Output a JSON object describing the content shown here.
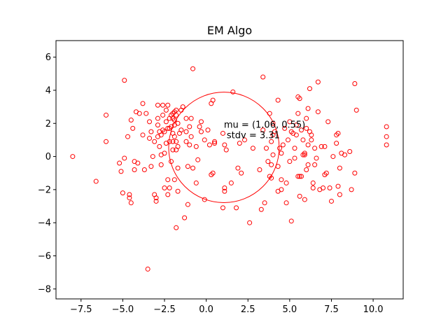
{
  "chart_data": {
    "type": "scatter",
    "title": "EM Algo",
    "xlabel": "",
    "ylabel": "",
    "xlim": [
      -9.0,
      11.8
    ],
    "ylim": [
      -8.6,
      7.0
    ],
    "xticks": [
      -7.5,
      -5.0,
      -2.5,
      0.0,
      2.5,
      5.0,
      7.5,
      10.0
    ],
    "xtick_labels": [
      "−7.5",
      "−5.0",
      "−2.5",
      "0.0",
      "2.5",
      "5.0",
      "7.5",
      "10.0"
    ],
    "yticks": [
      -8,
      -6,
      -4,
      -2,
      0,
      2,
      4,
      6
    ],
    "ytick_labels": [
      "−8",
      "−6",
      "−4",
      "−2",
      "0",
      "2",
      "4",
      "6"
    ],
    "grid": false,
    "marker_color": "#ff0000",
    "circle": {
      "center": [
        1.06,
        0.55
      ],
      "radius": 3.31,
      "color": "#ff0000"
    },
    "annotation": {
      "line1": "mu = (1.06, 0.55)",
      "line2": "stdv = 3.31",
      "anchor": [
        1.06,
        0.55
      ]
    },
    "points": [
      [
        -8.0,
        0.0
      ],
      [
        -6.6,
        -1.5
      ],
      [
        -6.0,
        2.5
      ],
      [
        -6.0,
        0.9
      ],
      [
        -5.2,
        -0.4
      ],
      [
        -5.1,
        -0.9
      ],
      [
        -5.0,
        -2.2
      ],
      [
        -4.9,
        4.6
      ],
      [
        -4.9,
        -0.1
      ],
      [
        -4.7,
        1.2
      ],
      [
        -4.6,
        -2.3
      ],
      [
        -4.6,
        -2.5
      ],
      [
        -4.5,
        -2.8
      ],
      [
        -4.5,
        2.2
      ],
      [
        -4.4,
        1.7
      ],
      [
        -4.3,
        -0.8
      ],
      [
        -4.3,
        -0.3
      ],
      [
        -4.2,
        2.7
      ],
      [
        -4.1,
        -0.4
      ],
      [
        -4.0,
        2.6
      ],
      [
        -3.8,
        3.2
      ],
      [
        -3.8,
        1.3
      ],
      [
        -3.7,
        -0.8
      ],
      [
        -3.6,
        2.6
      ],
      [
        -3.5,
        -6.8
      ],
      [
        -3.4,
        2.1
      ],
      [
        -3.4,
        1.1
      ],
      [
        -3.3,
        -0.6
      ],
      [
        -3.3,
        1.5
      ],
      [
        -3.2,
        0.0
      ],
      [
        -3.1,
        -2.3
      ],
      [
        -3.1,
        0.9
      ],
      [
        -3.0,
        -2.5
      ],
      [
        -3.0,
        -2.7
      ],
      [
        -2.9,
        3.1
      ],
      [
        -2.9,
        2.3
      ],
      [
        -2.9,
        1.9
      ],
      [
        -2.9,
        1.2
      ],
      [
        -2.8,
        1.5
      ],
      [
        -2.8,
        0.6
      ],
      [
        -2.7,
        1.3
      ],
      [
        -2.7,
        0.1
      ],
      [
        -2.7,
        -0.5
      ],
      [
        -2.6,
        2.5
      ],
      [
        -2.6,
        3.1
      ],
      [
        -2.6,
        1.6
      ],
      [
        -2.5,
        1.5
      ],
      [
        -2.5,
        0.2
      ],
      [
        -2.5,
        -1.9
      ],
      [
        -2.4,
        2.8
      ],
      [
        -2.4,
        2.1
      ],
      [
        -2.4,
        0.8
      ],
      [
        -2.3,
        -2.3
      ],
      [
        -2.3,
        -1.4
      ],
      [
        -2.3,
        3.1
      ],
      [
        -2.3,
        1.7
      ],
      [
        -2.2,
        2.3
      ],
      [
        -2.2,
        0.9
      ],
      [
        -2.2,
        1.7
      ],
      [
        -2.2,
        -1.9
      ],
      [
        -2.1,
        1.8
      ],
      [
        -2.1,
        2.5
      ],
      [
        -2.1,
        -0.3
      ],
      [
        -2.0,
        2.6
      ],
      [
        -2.0,
        2.3
      ],
      [
        -2.0,
        1.4
      ],
      [
        -2.0,
        0.9
      ],
      [
        -2.0,
        0.4
      ],
      [
        -1.9,
        2.7
      ],
      [
        -1.9,
        -1.4
      ],
      [
        -1.9,
        2.2
      ],
      [
        -1.9,
        1.9
      ],
      [
        -1.9,
        1.2
      ],
      [
        -1.8,
        2.5
      ],
      [
        -1.8,
        2.8
      ],
      [
        -1.8,
        0.9
      ],
      [
        -1.8,
        0.4
      ],
      [
        -1.8,
        -4.3
      ],
      [
        -1.7,
        2.0
      ],
      [
        -1.7,
        0.6
      ],
      [
        -1.7,
        -2.1
      ],
      [
        -1.7,
        -0.7
      ],
      [
        -1.6,
        1.4
      ],
      [
        -1.5,
        2.8
      ],
      [
        -1.5,
        1.6
      ],
      [
        -1.4,
        3.0
      ],
      [
        -1.3,
        -3.7
      ],
      [
        -1.2,
        2.3
      ],
      [
        -1.2,
        1.5
      ],
      [
        -1.2,
        0.9
      ],
      [
        -1.1,
        -2.9
      ],
      [
        -1.1,
        -0.6
      ],
      [
        -1.0,
        1.8
      ],
      [
        -1.0,
        0.7
      ],
      [
        -0.9,
        2.3
      ],
      [
        -0.9,
        1.2
      ],
      [
        -0.8,
        5.3
      ],
      [
        -0.8,
        -0.7
      ],
      [
        -0.6,
        -1.6
      ],
      [
        -0.6,
        0.6
      ],
      [
        -0.5,
        -0.2
      ],
      [
        -0.4,
        1.8
      ],
      [
        -0.3,
        2.1
      ],
      [
        -0.3,
        1.5
      ],
      [
        -0.1,
        -2.6
      ],
      [
        -0.1,
        1.0
      ],
      [
        0.1,
        1.6
      ],
      [
        0.2,
        0.7
      ],
      [
        0.3,
        -1.1
      ],
      [
        0.3,
        3.2
      ],
      [
        0.4,
        3.4
      ],
      [
        0.4,
        -1.0
      ],
      [
        0.5,
        0.9
      ],
      [
        0.5,
        0.8
      ],
      [
        1.0,
        -3.1
      ],
      [
        1.0,
        1.4
      ],
      [
        1.1,
        -1.9
      ],
      [
        1.1,
        -2.1
      ],
      [
        1.1,
        0.7
      ],
      [
        1.2,
        0.4
      ],
      [
        1.5,
        -1.6
      ],
      [
        1.6,
        3.9
      ],
      [
        1.8,
        -3.1
      ],
      [
        1.9,
        -0.7
      ],
      [
        2.0,
        0.8
      ],
      [
        2.1,
        -1.0
      ],
      [
        2.3,
        1.0
      ],
      [
        2.6,
        -4.0
      ],
      [
        2.8,
        0.5
      ],
      [
        3.2,
        -0.8
      ],
      [
        3.3,
        -3.2
      ],
      [
        3.4,
        4.8
      ],
      [
        3.4,
        1.6
      ],
      [
        3.5,
        -2.8
      ],
      [
        3.6,
        0.5
      ],
      [
        3.7,
        -0.3
      ],
      [
        3.8,
        2.6
      ],
      [
        3.8,
        -1.2
      ],
      [
        3.9,
        -1.3
      ],
      [
        3.9,
        0.9
      ],
      [
        3.9,
        -0.5
      ],
      [
        4.0,
        1.3
      ],
      [
        4.0,
        2.0
      ],
      [
        4.0,
        0.1
      ],
      [
        4.1,
        1.5
      ],
      [
        4.3,
        -2.1
      ],
      [
        4.3,
        -0.6
      ],
      [
        4.3,
        3.4
      ],
      [
        4.4,
        0.5
      ],
      [
        4.5,
        -1.4
      ],
      [
        4.5,
        -2.0
      ],
      [
        4.5,
        0.2
      ],
      [
        4.6,
        0.7
      ],
      [
        4.7,
        1.7
      ],
      [
        4.8,
        -1.6
      ],
      [
        4.8,
        -2.8
      ],
      [
        4.9,
        1.0
      ],
      [
        5.0,
        -0.3
      ],
      [
        5.0,
        2.1
      ],
      [
        5.1,
        -3.9
      ],
      [
        5.1,
        1.5
      ],
      [
        5.2,
        1.4
      ],
      [
        5.3,
        0.5
      ],
      [
        5.3,
        -0.1
      ],
      [
        5.4,
        1.9
      ],
      [
        5.4,
        1.3
      ],
      [
        5.5,
        3.6
      ],
      [
        5.5,
        2.6
      ],
      [
        5.5,
        -1.2
      ],
      [
        5.6,
        3.5
      ],
      [
        5.6,
        -2.4
      ],
      [
        5.6,
        -1.2
      ],
      [
        5.7,
        1.6
      ],
      [
        5.7,
        -1.2
      ],
      [
        5.8,
        0.1
      ],
      [
        5.8,
        1.0
      ],
      [
        5.9,
        -2.6
      ],
      [
        5.9,
        0.2
      ],
      [
        5.9,
        0.1
      ],
      [
        6.0,
        -0.8
      ],
      [
        6.0,
        1.7
      ],
      [
        6.0,
        2.3
      ],
      [
        6.1,
        2.9
      ],
      [
        6.1,
        0.7
      ],
      [
        6.1,
        -0.5
      ],
      [
        6.2,
        4.1
      ],
      [
        6.2,
        1.5
      ],
      [
        6.3,
        1.3
      ],
      [
        6.3,
        1.0
      ],
      [
        6.4,
        -1.6
      ],
      [
        6.4,
        -1.9
      ],
      [
        6.5,
        0.5
      ],
      [
        6.5,
        -0.5
      ],
      [
        6.6,
        -0.1
      ],
      [
        6.7,
        4.5
      ],
      [
        6.7,
        2.7
      ],
      [
        6.8,
        -2.0
      ],
      [
        6.9,
        0.6
      ],
      [
        7.0,
        -1.9
      ],
      [
        7.1,
        0.6
      ],
      [
        7.1,
        -1.1
      ],
      [
        7.2,
        -1.0
      ],
      [
        7.3,
        2.1
      ],
      [
        7.4,
        -1.9
      ],
      [
        7.5,
        -2.7
      ],
      [
        7.6,
        0.0
      ],
      [
        7.8,
        0.8
      ],
      [
        7.8,
        1.3
      ],
      [
        7.9,
        1.4
      ],
      [
        7.9,
        -1.8
      ],
      [
        8.0,
        -2.3
      ],
      [
        8.0,
        -0.7
      ],
      [
        8.1,
        0.2
      ],
      [
        8.3,
        0.1
      ],
      [
        8.6,
        0.3
      ],
      [
        8.7,
        -2.0
      ],
      [
        8.9,
        4.4
      ],
      [
        8.9,
        -1.0
      ],
      [
        9.0,
        2.8
      ],
      [
        10.8,
        1.8
      ],
      [
        10.8,
        1.2
      ],
      [
        10.8,
        0.7
      ]
    ]
  }
}
